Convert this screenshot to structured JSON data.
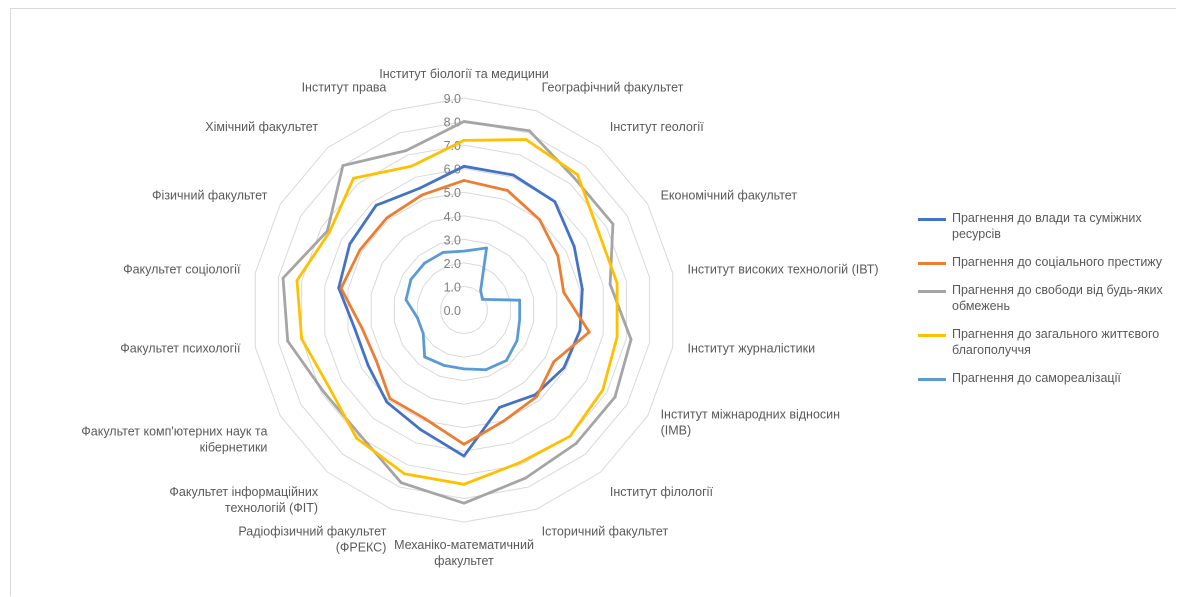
{
  "chart_data": {
    "type": "radar",
    "title": "",
    "rlim": [
      0,
      9
    ],
    "ticks": [
      "0.0",
      "1.0",
      "2.0",
      "3.0",
      "4.0",
      "5.0",
      "6.0",
      "7.0",
      "8.0",
      "9.0"
    ],
    "grid": true,
    "legend_position": "right",
    "categories": [
      "Інститут біології та медицини",
      "Географічний факультет",
      "Інститут геології",
      "Економічний факультет",
      "Інститут високих технологій (ІВТ)",
      "Інститут журналістики",
      "Інститут міжнародних відносин (ІМВ)",
      "Інститут філології",
      "Історичний факультет",
      "Механіко-математичний факультет",
      "Радіофізичний факультет (ФРЕКС)",
      "Факультет інформаційних технологій (ФІТ)",
      "Факультет комп'ютерних наук та кібернетики",
      "Факультет психології",
      "Факультет соціології",
      "Фізичний факультет",
      "Хімічний факультет",
      "Інститут права"
    ],
    "category_lines": [
      [
        "Інститут біології та медицини"
      ],
      [
        "Географічний факультет"
      ],
      [
        "Інститут геології"
      ],
      [
        "Економічний факультет"
      ],
      [
        "Інститут високих технологій (ІВТ)"
      ],
      [
        "Інститут журналістики"
      ],
      [
        "Інститут міжнародних відносин",
        "(ІМВ)"
      ],
      [
        "Інститут філології"
      ],
      [
        "Історичний факультет"
      ],
      [
        "Механіко-математичний",
        "факультет"
      ],
      [
        "Радіофізичний факультет",
        "(ФРЕКС)"
      ],
      [
        "Факультет інформаційних",
        "технологій (ФІТ)"
      ],
      [
        "Факультет комп'ютерних наук та",
        "кібернетики"
      ],
      [
        "Факультет психології"
      ],
      [
        "Факультет соціології"
      ],
      [
        "Фізичний факультет"
      ],
      [
        "Хімічний факультет"
      ],
      [
        "Інститут права"
      ]
    ],
    "series": [
      {
        "name": "Прагнення до влади та суміжних ресурсів",
        "color": "#4472c4",
        "values": [
          6.1,
          6.1,
          6.0,
          5.4,
          5.1,
          5.0,
          4.9,
          4.7,
          4.4,
          6.2,
          5.4,
          5.1,
          4.7,
          4.7,
          5.4,
          5.6,
          5.8,
          5.5
        ]
      },
      {
        "name": "Прагнення до соціального престижу",
        "color": "#ed7d31",
        "values": [
          5.5,
          5.4,
          5.0,
          4.6,
          4.3,
          5.4,
          4.4,
          4.8,
          5.0,
          5.7,
          4.9,
          4.9,
          4.3,
          4.4,
          5.3,
          5.1,
          5.1,
          5.2
        ]
      },
      {
        "name": "Прагнення до свободи від будь-яких обмежень",
        "color": "#a5a5a5",
        "values": [
          8.0,
          8.1,
          7.3,
          7.3,
          6.3,
          7.2,
          7.4,
          7.4,
          7.6,
          8.2,
          7.8,
          6.9,
          6.9,
          7.6,
          7.8,
          6.7,
          8.0,
          7.2
        ]
      },
      {
        "name": "Прагнення до загального життєвого благополуччя",
        "color": "#ffc000",
        "values": [
          7.2,
          7.7,
          7.5,
          6.6,
          6.6,
          6.6,
          6.8,
          7.0,
          6.9,
          7.4,
          7.4,
          7.1,
          6.6,
          7.0,
          7.2,
          6.6,
          7.3,
          6.5
        ]
      },
      {
        "name": "Прагнення до самореалізації",
        "color": "#5b9bd5",
        "values": [
          2.5,
          2.8,
          1.1,
          0.9,
          2.4,
          2.4,
          2.6,
          2.8,
          2.7,
          2.5,
          2.5,
          2.6,
          2.0,
          2.0,
          2.5,
          2.6,
          2.6,
          2.6
        ]
      }
    ]
  }
}
